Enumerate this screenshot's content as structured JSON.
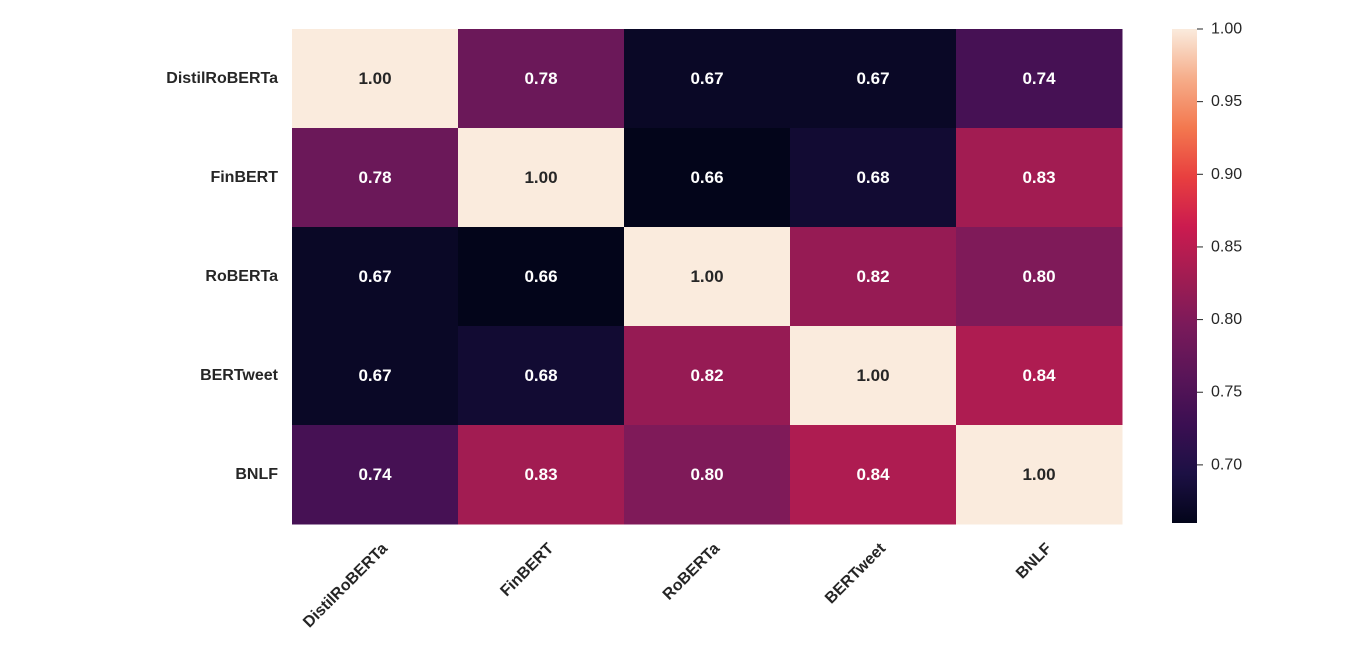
{
  "chart_data": {
    "type": "heatmap",
    "title": "",
    "xlabel": "",
    "ylabel": "",
    "rows": [
      "DistilRoBERTa",
      "FinBERT",
      "RoBERTa",
      "BERTweet",
      "BNLF"
    ],
    "columns": [
      "DistilRoBERTa",
      "FinBERT",
      "RoBERTa",
      "BERTweet",
      "BNLF"
    ],
    "values": [
      [
        1.0,
        0.78,
        0.67,
        0.67,
        0.74
      ],
      [
        0.78,
        1.0,
        0.66,
        0.68,
        0.83
      ],
      [
        0.67,
        0.66,
        1.0,
        0.82,
        0.8
      ],
      [
        0.67,
        0.68,
        0.82,
        1.0,
        0.84
      ],
      [
        0.74,
        0.83,
        0.8,
        0.84,
        1.0
      ]
    ],
    "annotations": [
      [
        "1.00",
        "0.78",
        "0.67",
        "0.67",
        "0.74"
      ],
      [
        "0.78",
        "1.00",
        "0.66",
        "0.68",
        "0.83"
      ],
      [
        "0.67",
        "0.66",
        "1.00",
        "0.82",
        "0.80"
      ],
      [
        "0.67",
        "0.68",
        "0.82",
        "1.00",
        "0.84"
      ],
      [
        "0.74",
        "0.83",
        "0.80",
        "0.84",
        "1.00"
      ]
    ],
    "colorbar": {
      "colormap": "rocket",
      "min": 0.66,
      "max": 1.0,
      "ticks": [
        1.0,
        0.95,
        0.9,
        0.85,
        0.8,
        0.75,
        0.7
      ],
      "tick_labels": [
        "1.00",
        "0.95",
        "0.90",
        "0.85",
        "0.80",
        "0.75",
        "0.70"
      ]
    },
    "colors": {
      "text_dark": "#262626",
      "text_light": "#ffffff"
    }
  }
}
